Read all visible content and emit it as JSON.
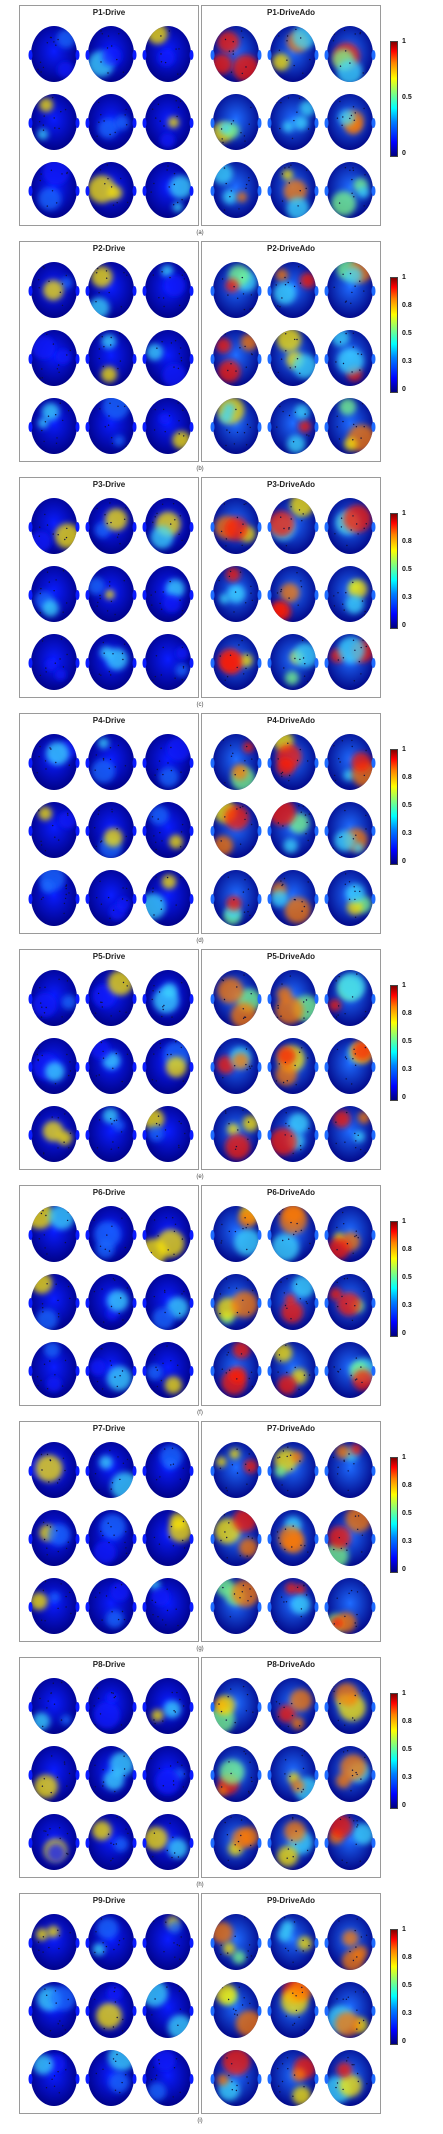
{
  "colorbar_ticks": [
    "1",
    "0.8",
    "0.5",
    "0.3",
    "0"
  ],
  "colorbar_ticks_a": [
    "1",
    "0.5",
    "0"
  ],
  "colors": {
    "deep_blue": "#00007f",
    "blue": "#0a1cff",
    "light_blue": "#1e6bff",
    "cyan": "#3fd8ff",
    "green": "#7cff8a",
    "yellow": "#ffe800",
    "orange": "#ff7a00",
    "red": "#ff1a00",
    "panel_border": "#9a9a9a"
  },
  "sections": [
    {
      "caption": "(a)",
      "left_title": "P1-Drive",
      "right_title": "P1-DriveAdo",
      "ticks": "a"
    },
    {
      "caption": "(b)",
      "left_title": "P2-Drive",
      "right_title": "P2-DriveAdo",
      "ticks": "full"
    },
    {
      "caption": "(c)",
      "left_title": "P3-Drive",
      "right_title": "P3-DriveAdo",
      "ticks": "full"
    },
    {
      "caption": "(d)",
      "left_title": "P4-Drive",
      "right_title": "P4-DriveAdo",
      "ticks": "full"
    },
    {
      "caption": "(e)",
      "left_title": "P5-Drive",
      "right_title": "P5-DriveAdo",
      "ticks": "full"
    },
    {
      "caption": "(f)",
      "left_title": "P6-Drive",
      "right_title": "P6-DriveAdo",
      "ticks": "full"
    },
    {
      "caption": "(g)",
      "left_title": "P7-Drive",
      "right_title": "P7-DriveAdo",
      "ticks": "full"
    },
    {
      "caption": "(h)",
      "left_title": "P8-Drive",
      "right_title": "P8-DriveAdo",
      "ticks": "full"
    },
    {
      "caption": "(i)",
      "left_title": "P9-Drive",
      "right_title": "P9-DriveAdo",
      "ticks": "full"
    }
  ]
}
